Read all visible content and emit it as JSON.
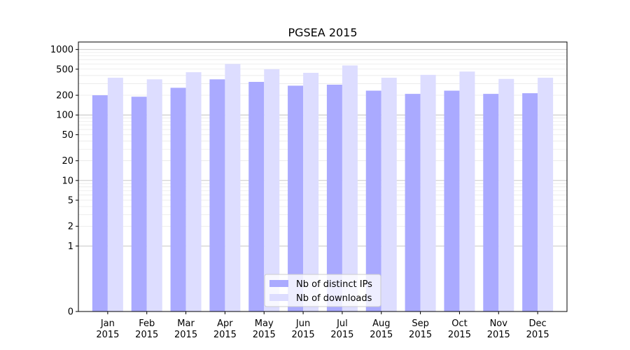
{
  "chart_data": {
    "type": "bar",
    "title": "PGSEA 2015",
    "xlabel": "",
    "ylabel": "",
    "yscale": "symlog",
    "ylim": [
      0,
      1300
    ],
    "grid": "horizontal, major and minor",
    "legend_position": "lower center",
    "categories": [
      [
        "Jan",
        "2015"
      ],
      [
        "Feb",
        "2015"
      ],
      [
        "Mar",
        "2015"
      ],
      [
        "Apr",
        "2015"
      ],
      [
        "May",
        "2015"
      ],
      [
        "Jun",
        "2015"
      ],
      [
        "Jul",
        "2015"
      ],
      [
        "Aug",
        "2015"
      ],
      [
        "Sep",
        "2015"
      ],
      [
        "Oct",
        "2015"
      ],
      [
        "Nov",
        "2015"
      ],
      [
        "Dec",
        "2015"
      ]
    ],
    "y_ticks": [
      {
        "value": 0,
        "label": "0"
      },
      {
        "value": 1,
        "label": "1"
      },
      {
        "value": 2,
        "label": "2"
      },
      {
        "value": 5,
        "label": "5"
      },
      {
        "value": 10,
        "label": "10"
      },
      {
        "value": 20,
        "label": "20"
      },
      {
        "value": 50,
        "label": "50"
      },
      {
        "value": 100,
        "label": "100"
      },
      {
        "value": 200,
        "label": "200"
      },
      {
        "value": 500,
        "label": "500"
      },
      {
        "value": 1000,
        "label": "1000"
      }
    ],
    "series": [
      {
        "name": "Nb of distinct IPs",
        "color": "#aaaaff",
        "values": [
          200,
          190,
          260,
          350,
          320,
          280,
          290,
          235,
          210,
          235,
          210,
          215
        ]
      },
      {
        "name": "Nb of downloads",
        "color": "#ddddff",
        "values": [
          370,
          350,
          450,
          600,
          500,
          440,
          570,
          370,
          410,
          460,
          355,
          370
        ]
      }
    ]
  }
}
